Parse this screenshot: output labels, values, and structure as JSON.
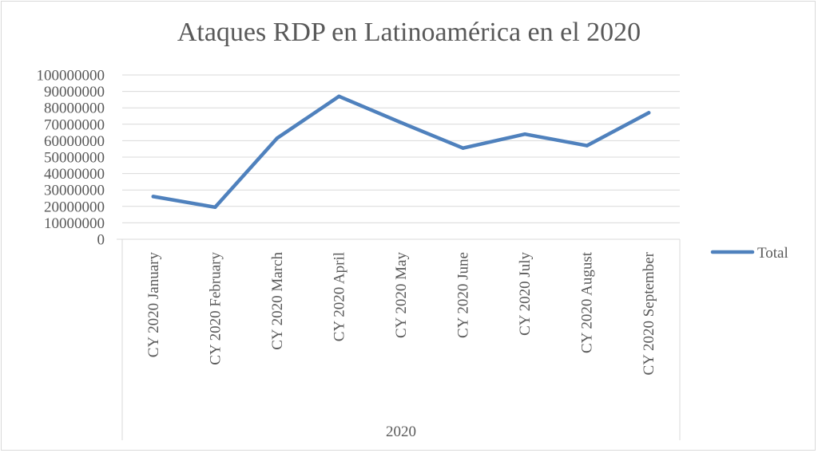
{
  "chart_data": {
    "type": "line",
    "title": "Ataques RDP en Latinoamérica en el 2020",
    "categories": [
      "CY 2020 January",
      "CY 2020 February",
      "CY 2020 March",
      "CY 2020 April",
      "CY 2020 May",
      "CY 2020 June",
      "CY 2020 July",
      "CY 2020 August",
      "CY 2020 September"
    ],
    "group_label": "2020",
    "series": [
      {
        "name": "Total",
        "color": "#4f81bd",
        "values": [
          26000000,
          19500000,
          61500000,
          87000000,
          71000000,
          55500000,
          64000000,
          57000000,
          77000000
        ]
      }
    ],
    "ylim": [
      0,
      100000000
    ],
    "yticks": [
      0,
      10000000,
      20000000,
      30000000,
      40000000,
      50000000,
      60000000,
      70000000,
      80000000,
      90000000,
      100000000
    ],
    "ytick_labels": [
      "0",
      "10000000",
      "20000000",
      "30000000",
      "40000000",
      "50000000",
      "60000000",
      "70000000",
      "80000000",
      "90000000",
      "100000000"
    ],
    "grid": true,
    "legend": "right"
  }
}
